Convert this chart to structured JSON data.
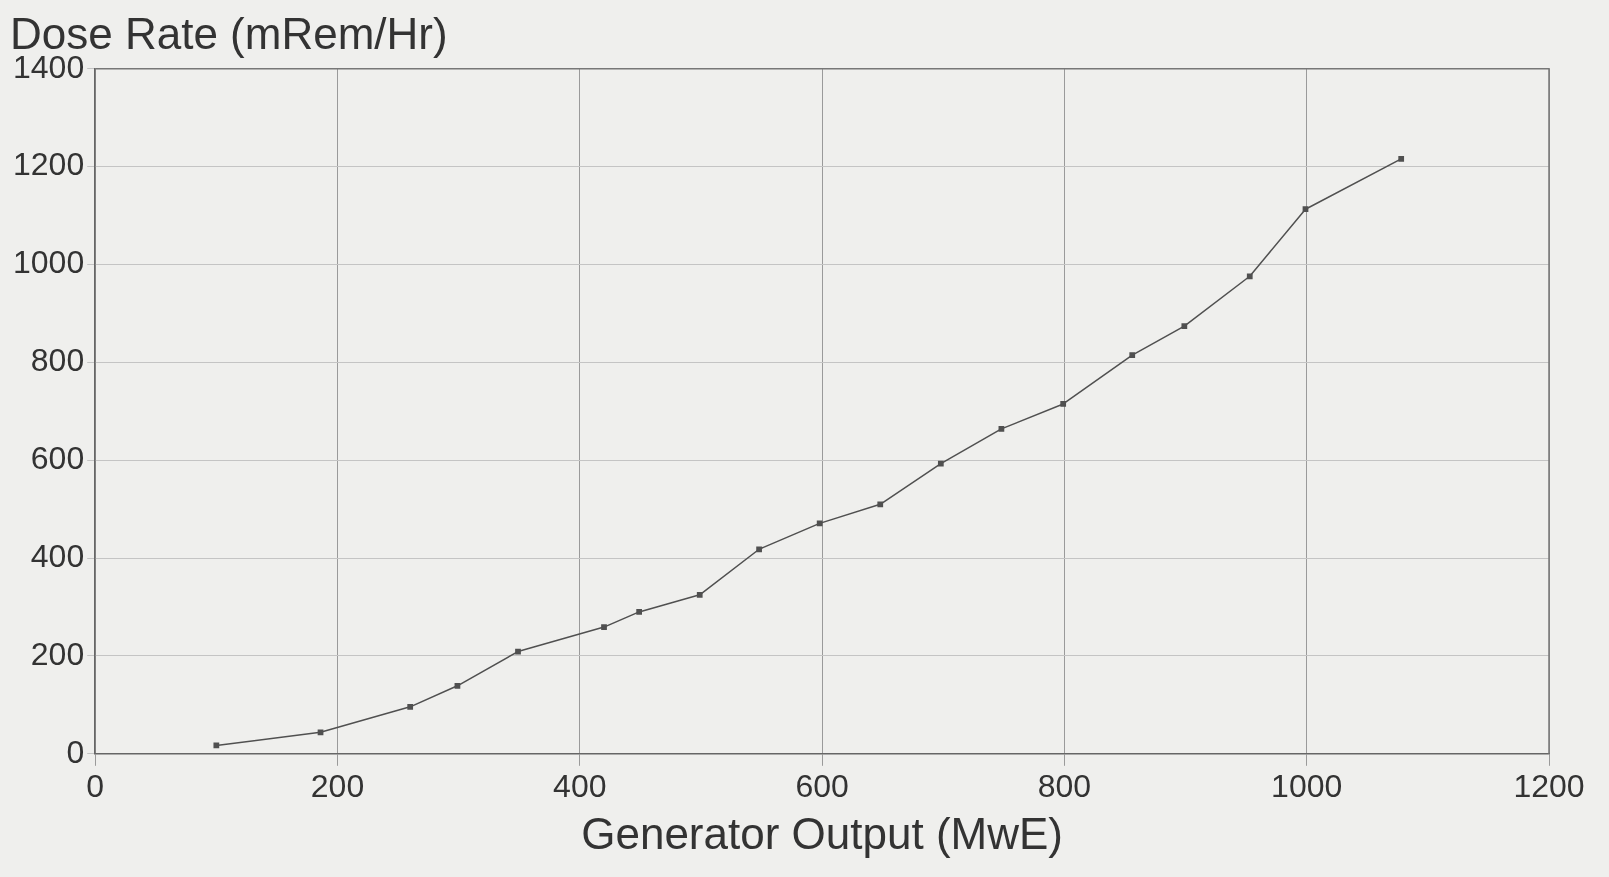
{
  "chart_data": {
    "type": "line",
    "ylabel": "Dose Rate (mRem/Hr)",
    "xlabel": "Generator Output (MwE)",
    "x": [
      100,
      186,
      260,
      299,
      349,
      420,
      449,
      499,
      548,
      598,
      648,
      698,
      748,
      799,
      856,
      899,
      953,
      999,
      1078
    ],
    "series": [
      {
        "color": "#505050",
        "values": [
          17,
          44,
          96,
          139,
          209,
          259,
          290,
          325,
          418,
          471,
          510,
          593,
          664,
          715,
          815,
          874,
          976,
          1113,
          1216
        ]
      }
    ],
    "xlim": [
      0,
      1200
    ],
    "xticks": [
      0,
      200,
      400,
      600,
      800,
      1000,
      1200
    ],
    "ylim": [
      0,
      1400
    ],
    "yticks": [
      0,
      200,
      400,
      600,
      800,
      1000,
      1200,
      1400
    ],
    "grid": true,
    "legend": false,
    "marker": "square",
    "line_style": "solid"
  }
}
